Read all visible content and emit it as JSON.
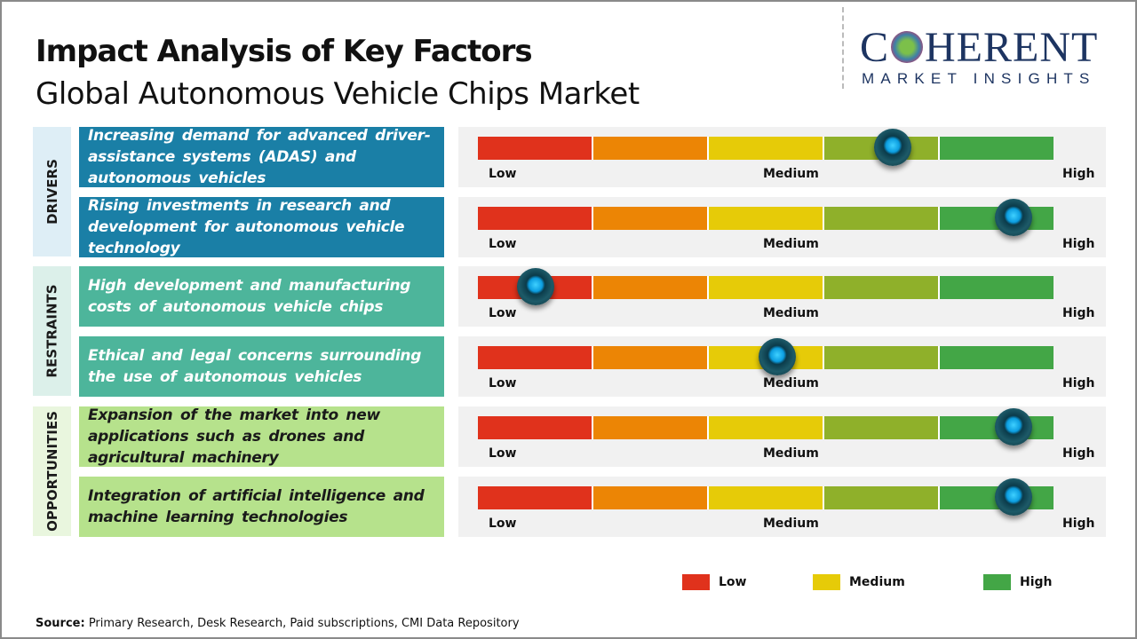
{
  "header": {
    "title": "Impact Analysis of Key Factors",
    "subtitle": "Global Autonomous Vehicle Chips Market"
  },
  "logo": {
    "line1_a": "C",
    "line1_b": "HERENT",
    "line2": "MARKET INSIGHTS"
  },
  "colors": {
    "scale": [
      "#e0321c",
      "#ec8505",
      "#e6cb08",
      "#8fb02a",
      "#43a646"
    ],
    "drivers": "#1a7fa6",
    "restraints": "#4db59b",
    "opportunities": "#b6e28c",
    "drivers_bg": "#deeef6",
    "restraints_bg": "#dcf0ea",
    "opportunities_bg": "#e9f6de"
  },
  "chart_data": {
    "type": "gauge",
    "title": "Impact Analysis of Key Factors",
    "scale_labels": {
      "low": "Low",
      "medium": "Medium",
      "high": "High"
    },
    "range": [
      0,
      1
    ],
    "categories": [
      {
        "name": "DRIVERS",
        "factors": [
          {
            "text": "Increasing demand for advanced driver-assistance systems (ADAS) and autonomous vehicles",
            "impact": 0.72
          },
          {
            "text": "Rising investments in research and development for autonomous vehicle technology",
            "impact": 0.93
          }
        ]
      },
      {
        "name": "RESTRAINTS",
        "factors": [
          {
            "text": "High development and manufacturing costs of autonomous vehicle chips",
            "impact": 0.1
          },
          {
            "text": "Ethical and legal concerns surrounding the use of autonomous vehicles",
            "impact": 0.52
          }
        ]
      },
      {
        "name": "OPPORTUNITIES",
        "factors": [
          {
            "text": "Expansion of the market into new applications such as drones and agricultural machinery",
            "impact": 0.93
          },
          {
            "text": "Integration of artificial intelligence and machine learning technologies",
            "impact": 0.93
          }
        ]
      }
    ],
    "legend": [
      {
        "label": "Low",
        "color": "#e0321c"
      },
      {
        "label": "Medium",
        "color": "#e6cb08"
      },
      {
        "label": "High",
        "color": "#43a646"
      }
    ]
  },
  "source": {
    "label": "Source:",
    "text": " Primary Research, Desk Research, Paid subscriptions, CMI Data Repository"
  }
}
